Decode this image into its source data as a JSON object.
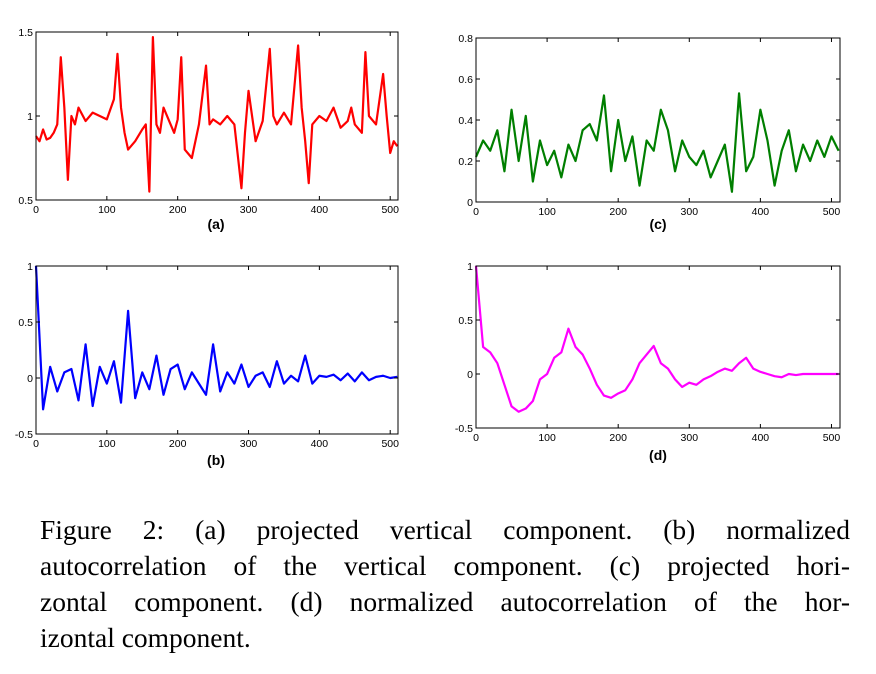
{
  "chart_data": [
    {
      "type": "line",
      "label": "(a)",
      "xlim": [
        0,
        511
      ],
      "xticks": [
        0,
        100,
        200,
        300,
        400,
        500
      ],
      "ylim": [
        0.5,
        1.5
      ],
      "yticks": [
        0.5,
        1,
        1.5
      ],
      "series": [
        {
          "color": "#ff0000",
          "x": [
            0,
            5,
            10,
            15,
            20,
            25,
            30,
            35,
            40,
            45,
            50,
            55,
            60,
            70,
            80,
            90,
            100,
            110,
            115,
            120,
            125,
            130,
            140,
            150,
            155,
            160,
            165,
            170,
            175,
            180,
            190,
            195,
            200,
            205,
            210,
            220,
            230,
            240,
            245,
            250,
            260,
            270,
            280,
            290,
            295,
            300,
            310,
            320,
            330,
            335,
            340,
            350,
            360,
            370,
            375,
            380,
            385,
            390,
            400,
            410,
            420,
            430,
            440,
            445,
            450,
            460,
            465,
            470,
            480,
            490,
            495,
            500,
            505,
            510
          ],
          "values": [
            0.88,
            0.85,
            0.92,
            0.86,
            0.87,
            0.9,
            0.95,
            1.35,
            1.05,
            0.62,
            1.0,
            0.95,
            1.05,
            0.97,
            1.02,
            1.0,
            0.98,
            1.1,
            1.37,
            1.05,
            0.9,
            0.8,
            0.85,
            0.92,
            0.95,
            0.55,
            1.47,
            0.95,
            0.9,
            1.05,
            0.95,
            0.9,
            0.98,
            1.35,
            0.8,
            0.75,
            0.95,
            1.3,
            0.95,
            0.98,
            0.95,
            1.0,
            0.95,
            0.57,
            0.9,
            1.15,
            0.85,
            0.97,
            1.4,
            1.0,
            0.95,
            1.02,
            0.95,
            1.42,
            1.05,
            0.85,
            0.6,
            0.95,
            1.0,
            0.97,
            1.05,
            0.93,
            0.97,
            1.05,
            0.95,
            0.9,
            1.38,
            1.0,
            0.95,
            1.25,
            1.0,
            0.78,
            0.85,
            0.82
          ]
        }
      ]
    },
    {
      "type": "line",
      "label": "(c)",
      "xlim": [
        0,
        512
      ],
      "xticks": [
        0,
        100,
        200,
        300,
        400,
        500
      ],
      "ylim": [
        0,
        0.8
      ],
      "yticks": [
        0,
        0.2,
        0.4,
        0.6,
        0.8
      ],
      "series": [
        {
          "color": "#007f00",
          "x": [
            0,
            10,
            20,
            30,
            40,
            50,
            60,
            70,
            80,
            90,
            100,
            110,
            120,
            130,
            140,
            150,
            160,
            170,
            180,
            190,
            200,
            210,
            220,
            230,
            240,
            250,
            260,
            270,
            280,
            290,
            300,
            310,
            320,
            330,
            340,
            350,
            360,
            370,
            380,
            390,
            400,
            410,
            420,
            430,
            440,
            450,
            460,
            470,
            480,
            490,
            500,
            510
          ],
          "values": [
            0.22,
            0.3,
            0.25,
            0.35,
            0.15,
            0.45,
            0.2,
            0.42,
            0.1,
            0.3,
            0.18,
            0.25,
            0.12,
            0.28,
            0.2,
            0.35,
            0.38,
            0.3,
            0.52,
            0.15,
            0.4,
            0.2,
            0.32,
            0.08,
            0.3,
            0.25,
            0.45,
            0.35,
            0.15,
            0.3,
            0.22,
            0.18,
            0.25,
            0.12,
            0.2,
            0.28,
            0.05,
            0.53,
            0.15,
            0.22,
            0.45,
            0.3,
            0.08,
            0.25,
            0.35,
            0.15,
            0.28,
            0.2,
            0.3,
            0.22,
            0.32,
            0.25
          ]
        }
      ]
    },
    {
      "type": "line",
      "label": "(b)",
      "xlim": [
        0,
        511
      ],
      "xticks": [
        0,
        100,
        200,
        300,
        400,
        500
      ],
      "ylim": [
        -0.5,
        1
      ],
      "yticks": [
        -0.5,
        0,
        0.5,
        1
      ],
      "series": [
        {
          "color": "#0000ff",
          "x": [
            0,
            10,
            20,
            30,
            40,
            50,
            60,
            70,
            80,
            90,
            100,
            110,
            120,
            130,
            140,
            150,
            160,
            170,
            180,
            190,
            200,
            210,
            220,
            230,
            240,
            250,
            260,
            270,
            280,
            290,
            300,
            310,
            320,
            330,
            340,
            350,
            360,
            370,
            380,
            390,
            400,
            410,
            420,
            430,
            440,
            450,
            460,
            470,
            480,
            490,
            500,
            510
          ],
          "values": [
            1,
            -0.28,
            0.1,
            -0.12,
            0.05,
            0.08,
            -0.2,
            0.3,
            -0.25,
            0.1,
            -0.05,
            0.15,
            -0.22,
            0.6,
            -0.18,
            0.05,
            -0.1,
            0.2,
            -0.15,
            0.08,
            0.12,
            -0.1,
            0.05,
            -0.05,
            -0.15,
            0.3,
            -0.12,
            0.05,
            -0.05,
            0.12,
            -0.08,
            0.02,
            0.05,
            -0.08,
            0.15,
            -0.05,
            0.02,
            -0.03,
            0.2,
            -0.05,
            0.02,
            0.01,
            0.03,
            -0.02,
            0.04,
            -0.03,
            0.05,
            -0.02,
            0.01,
            0.02,
            0,
            0.01
          ]
        }
      ]
    },
    {
      "type": "line",
      "label": "(d)",
      "xlim": [
        0,
        512
      ],
      "xticks": [
        0,
        100,
        200,
        300,
        400,
        500
      ],
      "ylim": [
        -0.5,
        1
      ],
      "yticks": [
        -0.5,
        0,
        0.5,
        1
      ],
      "series": [
        {
          "color": "#ff00ff",
          "x": [
            0,
            10,
            20,
            30,
            40,
            50,
            60,
            70,
            80,
            90,
            100,
            110,
            120,
            130,
            140,
            150,
            160,
            170,
            180,
            190,
            200,
            210,
            220,
            230,
            240,
            250,
            260,
            270,
            280,
            290,
            300,
            310,
            320,
            330,
            340,
            350,
            360,
            370,
            380,
            390,
            400,
            410,
            420,
            430,
            440,
            450,
            460,
            470,
            480,
            490,
            500,
            510
          ],
          "values": [
            1,
            0.25,
            0.2,
            0.1,
            -0.1,
            -0.3,
            -0.35,
            -0.32,
            -0.25,
            -0.05,
            0,
            0.15,
            0.2,
            0.42,
            0.25,
            0.18,
            0.05,
            -0.1,
            -0.2,
            -0.22,
            -0.18,
            -0.15,
            -0.05,
            0.1,
            0.18,
            0.26,
            0.1,
            0.05,
            -0.05,
            -0.12,
            -0.08,
            -0.1,
            -0.05,
            -0.02,
            0.02,
            0.05,
            0.03,
            0.1,
            0.15,
            0.05,
            0.02,
            0,
            -0.02,
            -0.03,
            0,
            -0.01,
            0,
            0,
            0,
            0,
            0,
            0
          ]
        }
      ]
    }
  ],
  "caption": [
    "Figure 2: (a) projected vertical component. (b) normalized",
    "autocorrelation of the vertical component. (c) projected hori-",
    "zontal component. (d) normalized autocorrelation of the hor-",
    "izontal component."
  ]
}
